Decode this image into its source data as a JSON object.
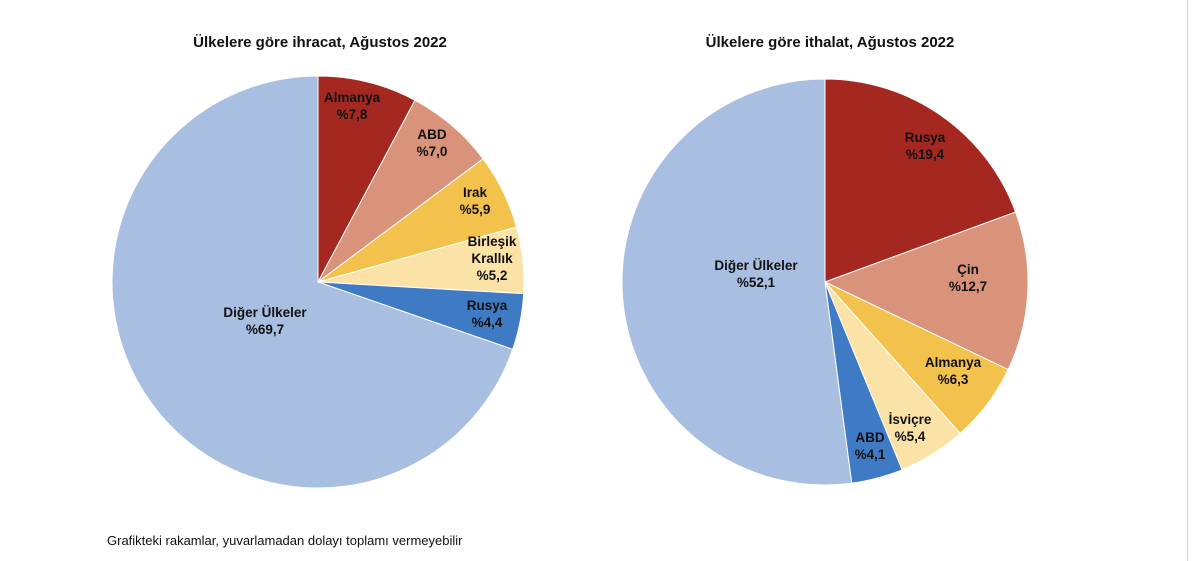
{
  "chart_data": [
    {
      "type": "pie",
      "title": "Ülkelere göre ihracat, Ağustos 2022",
      "unit": "%",
      "slices": [
        {
          "label": "Almanya",
          "value_label": "%7,8",
          "value": 7.8,
          "color": "#a4281f"
        },
        {
          "label": "ABD",
          "value_label": "%7,0",
          "value": 7.0,
          "color": "#d9937b"
        },
        {
          "label": "Irak",
          "value_label": "%5,9",
          "value": 5.9,
          "color": "#f3c24c"
        },
        {
          "label": "Birleşik Krallık",
          "value_label": "%5,2",
          "value": 5.2,
          "color": "#fbe3a8"
        },
        {
          "label": "Rusya",
          "value_label": "%4,4",
          "value": 4.4,
          "color": "#3f7ac4"
        },
        {
          "label": "Diğer Ülkeler",
          "value_label": "%69,7",
          "value": 69.7,
          "color": "#a9bfe2"
        }
      ]
    },
    {
      "type": "pie",
      "title": "Ülkelere göre ithalat, Ağustos 2022",
      "unit": "%",
      "slices": [
        {
          "label": "Rusya",
          "value_label": "%19,4",
          "value": 19.4,
          "color": "#a4281f"
        },
        {
          "label": "Çin",
          "value_label": "%12,7",
          "value": 12.7,
          "color": "#d9937b"
        },
        {
          "label": "Almanya",
          "value_label": "%6,3",
          "value": 6.3,
          "color": "#f3c24c"
        },
        {
          "label": "İsviçre",
          "value_label": "%5,4",
          "value": 5.4,
          "color": "#fbe3a8"
        },
        {
          "label": "ABD",
          "value_label": "%4,1",
          "value": 4.1,
          "color": "#3f7ac4"
        },
        {
          "label": "Diğer Ülkeler",
          "value_label": "%52,1",
          "value": 52.1,
          "color": "#a9bfe2"
        }
      ]
    }
  ],
  "footnote": "Grafikteki rakamlar, yuvarlamadan dolayı toplamı vermeyebilir"
}
